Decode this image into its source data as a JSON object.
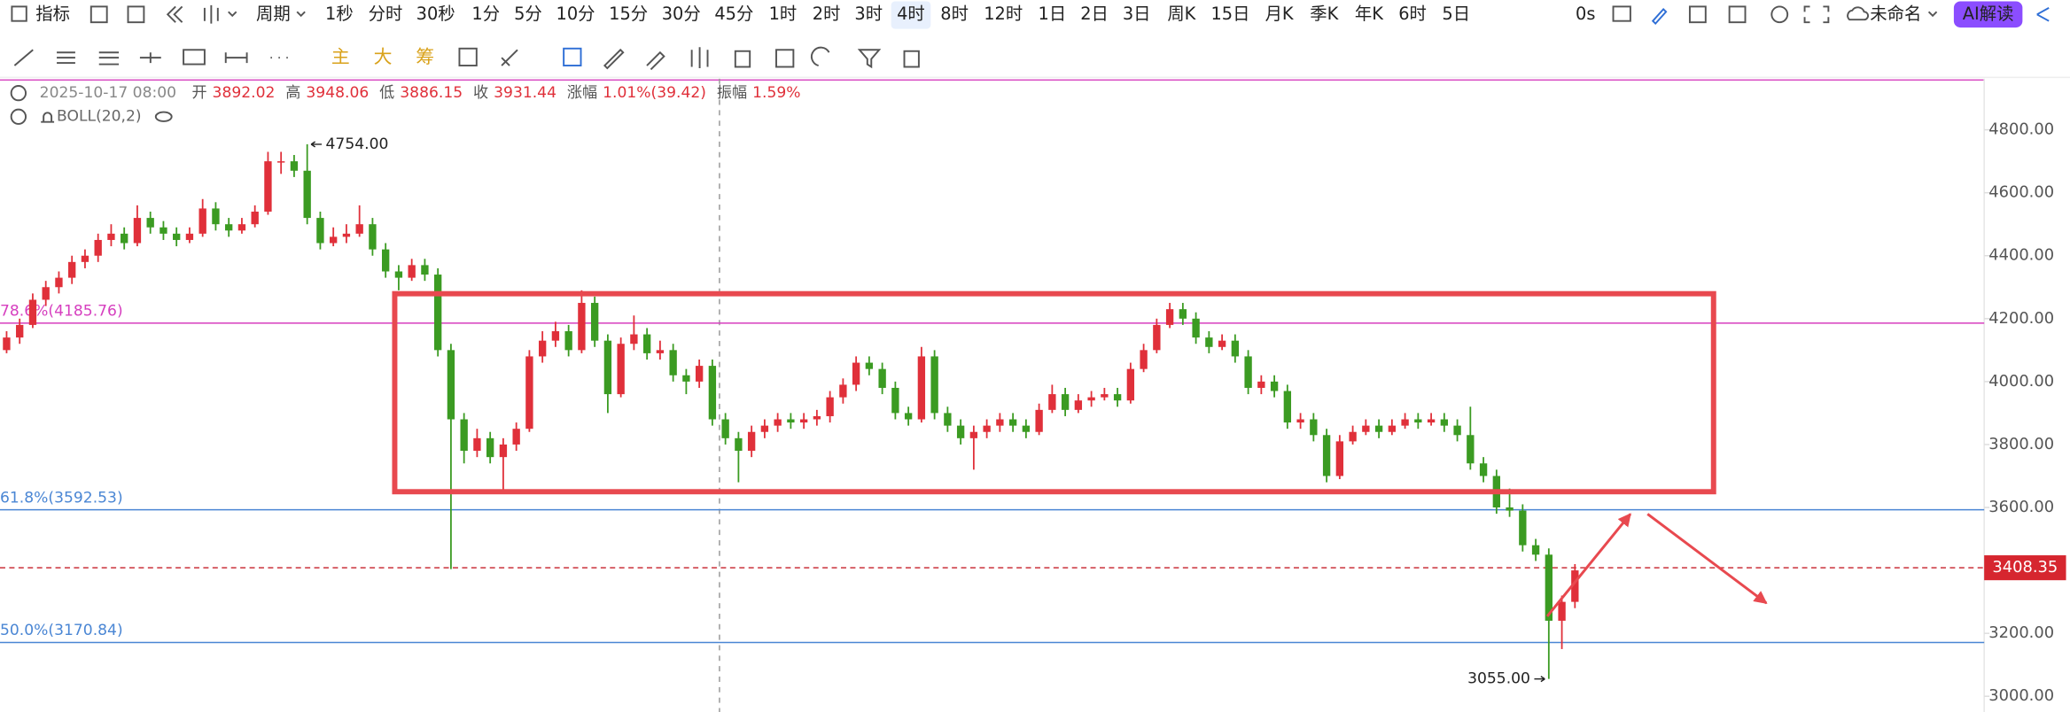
{
  "toolbar": {
    "indicator": "指标",
    "period": "周期",
    "intervals": [
      "1秒",
      "分时",
      "30秒",
      "1分",
      "5分",
      "10分",
      "15分",
      "30分",
      "45分",
      "1时",
      "2时",
      "3时",
      "4时",
      "8时",
      "12时",
      "1日",
      "2日",
      "3日",
      "周K",
      "15日",
      "月K",
      "季K",
      "年K",
      "6时",
      "5日"
    ],
    "selected_interval": "4时",
    "timer": "0s",
    "file_name": "未命名",
    "ai_button": "AI解读"
  },
  "drawing_tools": {
    "main": "主",
    "big": "大",
    "chips": "筹"
  },
  "info_bar": {
    "datetime": "2025-10-17 08:00",
    "fields": [
      {
        "label": "开",
        "value": "3892.02"
      },
      {
        "label": "高",
        "value": "3948.06"
      },
      {
        "label": "低",
        "value": "3886.15"
      },
      {
        "label": "收",
        "value": "3931.44"
      },
      {
        "label": "涨幅",
        "value": "1.01%(39.42)"
      },
      {
        "label": "振幅",
        "value": "1.59%"
      }
    ],
    "indicator": "BOLL(20,2)"
  },
  "chart_data": {
    "type": "candlestick",
    "up_color": "#e0303a",
    "down_color": "#3b9b22",
    "ylim": [
      2950,
      4962.5
    ],
    "yticks": [
      {
        "value": 4800,
        "label": "4800.00"
      },
      {
        "value": 4600,
        "label": "4600.00"
      },
      {
        "value": 4400,
        "label": "4400.00"
      },
      {
        "value": 4200,
        "label": "4200.00"
      },
      {
        "value": 4000,
        "label": "4000.00"
      },
      {
        "value": 3800,
        "label": "3800.00"
      },
      {
        "value": 3600,
        "label": "3600.00"
      },
      {
        "value": 3400,
        "label": "3400.00"
      },
      {
        "value": 3200,
        "label": "3200.00"
      },
      {
        "value": 3000,
        "label": "3000.00"
      }
    ],
    "grid": false,
    "high_label": "4754.00",
    "low_label": "3055.00",
    "current_price": 3408.35,
    "levels": [
      {
        "label": "78.6%(4185.76)",
        "value": 4185.76,
        "color": "#d63fbf"
      },
      {
        "label": "61.8%(3592.53)",
        "value": 3592.53,
        "color": "#4a86d4"
      },
      {
        "label": "50.0%(3170.84)",
        "value": 3170.84,
        "color": "#4a86d4"
      }
    ],
    "candles": [
      [
        4100,
        4160,
        4090,
        4140
      ],
      [
        4140,
        4200,
        4120,
        4180
      ],
      [
        4180,
        4280,
        4170,
        4260
      ],
      [
        4260,
        4320,
        4240,
        4300
      ],
      [
        4300,
        4350,
        4280,
        4330
      ],
      [
        4330,
        4400,
        4310,
        4380
      ],
      [
        4380,
        4420,
        4360,
        4400
      ],
      [
        4400,
        4470,
        4380,
        4450
      ],
      [
        4450,
        4500,
        4430,
        4470
      ],
      [
        4470,
        4490,
        4420,
        4440
      ],
      [
        4440,
        4560,
        4430,
        4520
      ],
      [
        4520,
        4540,
        4470,
        4490
      ],
      [
        4490,
        4510,
        4450,
        4470
      ],
      [
        4470,
        4490,
        4430,
        4450
      ],
      [
        4450,
        4490,
        4440,
        4470
      ],
      [
        4470,
        4580,
        4460,
        4550
      ],
      [
        4550,
        4570,
        4480,
        4500
      ],
      [
        4500,
        4520,
        4460,
        4480
      ],
      [
        4480,
        4520,
        4470,
        4500
      ],
      [
        4500,
        4560,
        4490,
        4540
      ],
      [
        4540,
        4730,
        4530,
        4700
      ],
      [
        4700,
        4730,
        4660,
        4700
      ],
      [
        4700,
        4720,
        4650,
        4670
      ],
      [
        4670,
        4754,
        4500,
        4520
      ],
      [
        4520,
        4540,
        4420,
        4440
      ],
      [
        4440,
        4490,
        4430,
        4460
      ],
      [
        4460,
        4500,
        4440,
        4470
      ],
      [
        4470,
        4560,
        4460,
        4500
      ],
      [
        4500,
        4520,
        4400,
        4420
      ],
      [
        4420,
        4440,
        4330,
        4350
      ],
      [
        4350,
        4370,
        4290,
        4330
      ],
      [
        4330,
        4390,
        4320,
        4370
      ],
      [
        4370,
        4390,
        4320,
        4340
      ],
      [
        4340,
        4360,
        4080,
        4100
      ],
      [
        4100,
        4120,
        3404,
        3880
      ],
      [
        3880,
        3900,
        3740,
        3780
      ],
      [
        3780,
        3850,
        3760,
        3820
      ],
      [
        3820,
        3840,
        3740,
        3760
      ],
      [
        3760,
        3820,
        3650,
        3800
      ],
      [
        3800,
        3870,
        3780,
        3850
      ],
      [
        3850,
        4100,
        3840,
        4080
      ],
      [
        4080,
        4160,
        4060,
        4130
      ],
      [
        4130,
        4190,
        4110,
        4160
      ],
      [
        4160,
        4180,
        4080,
        4100
      ],
      [
        4100,
        4290,
        4090,
        4250
      ],
      [
        4250,
        4270,
        4110,
        4130
      ],
      [
        4130,
        4150,
        3900,
        3960
      ],
      [
        3960,
        4140,
        3950,
        4120
      ],
      [
        4120,
        4210,
        4100,
        4150
      ],
      [
        4150,
        4170,
        4070,
        4090
      ],
      [
        4090,
        4130,
        4070,
        4100
      ],
      [
        4100,
        4120,
        4000,
        4020
      ],
      [
        4020,
        4040,
        3960,
        4000
      ],
      [
        4000,
        4070,
        3980,
        4050
      ],
      [
        4050,
        4070,
        3860,
        3880
      ],
      [
        3880,
        3900,
        3800,
        3820
      ],
      [
        3820,
        3840,
        3680,
        3780
      ],
      [
        3780,
        3860,
        3760,
        3840
      ],
      [
        3840,
        3880,
        3820,
        3860
      ],
      [
        3860,
        3900,
        3840,
        3880
      ],
      [
        3880,
        3900,
        3850,
        3870
      ],
      [
        3870,
        3900,
        3850,
        3880
      ],
      [
        3880,
        3910,
        3860,
        3890
      ],
      [
        3890,
        3970,
        3870,
        3950
      ],
      [
        3950,
        4010,
        3930,
        3990
      ],
      [
        3990,
        4080,
        3970,
        4060
      ],
      [
        4060,
        4080,
        4020,
        4040
      ],
      [
        4040,
        4060,
        3960,
        3980
      ],
      [
        3980,
        4000,
        3880,
        3900
      ],
      [
        3900,
        3920,
        3860,
        3880
      ],
      [
        3880,
        4110,
        3870,
        4080
      ],
      [
        4080,
        4100,
        3880,
        3900
      ],
      [
        3900,
        3920,
        3840,
        3860
      ],
      [
        3860,
        3880,
        3800,
        3820
      ],
      [
        3820,
        3860,
        3720,
        3840
      ],
      [
        3840,
        3880,
        3820,
        3860
      ],
      [
        3860,
        3900,
        3840,
        3880
      ],
      [
        3880,
        3900,
        3840,
        3860
      ],
      [
        3860,
        3880,
        3820,
        3840
      ],
      [
        3840,
        3930,
        3830,
        3910
      ],
      [
        3910,
        3990,
        3900,
        3960
      ],
      [
        3960,
        3980,
        3890,
        3910
      ],
      [
        3910,
        3960,
        3900,
        3940
      ],
      [
        3940,
        3970,
        3920,
        3950
      ],
      [
        3950,
        3980,
        3940,
        3960
      ],
      [
        3960,
        3980,
        3920,
        3940
      ],
      [
        3940,
        4060,
        3930,
        4040
      ],
      [
        4040,
        4120,
        4030,
        4100
      ],
      [
        4100,
        4200,
        4090,
        4180
      ],
      [
        4180,
        4250,
        4170,
        4230
      ],
      [
        4230,
        4250,
        4180,
        4200
      ],
      [
        4200,
        4220,
        4120,
        4140
      ],
      [
        4140,
        4160,
        4090,
        4110
      ],
      [
        4110,
        4150,
        4100,
        4130
      ],
      [
        4130,
        4150,
        4060,
        4080
      ],
      [
        4080,
        4100,
        3960,
        3980
      ],
      [
        3980,
        4020,
        3960,
        4000
      ],
      [
        4000,
        4020,
        3950,
        3970
      ],
      [
        3970,
        3990,
        3850,
        3870
      ],
      [
        3870,
        3900,
        3850,
        3880
      ],
      [
        3880,
        3900,
        3810,
        3830
      ],
      [
        3830,
        3850,
        3680,
        3700
      ],
      [
        3700,
        3830,
        3690,
        3810
      ],
      [
        3810,
        3860,
        3800,
        3840
      ],
      [
        3840,
        3880,
        3830,
        3860
      ],
      [
        3860,
        3880,
        3820,
        3840
      ],
      [
        3840,
        3880,
        3830,
        3860
      ],
      [
        3860,
        3900,
        3850,
        3880
      ],
      [
        3880,
        3900,
        3850,
        3870
      ],
      [
        3870,
        3900,
        3860,
        3880
      ],
      [
        3880,
        3900,
        3840,
        3860
      ],
      [
        3860,
        3880,
        3810,
        3830
      ],
      [
        3830,
        3920,
        3720,
        3740
      ],
      [
        3740,
        3760,
        3680,
        3700
      ],
      [
        3700,
        3720,
        3580,
        3600
      ],
      [
        3600,
        3660,
        3570,
        3590
      ],
      [
        3590,
        3610,
        3460,
        3480
      ],
      [
        3480,
        3500,
        3430,
        3450
      ],
      [
        3450,
        3470,
        3055,
        3240
      ],
      [
        3240,
        3320,
        3150,
        3300
      ],
      [
        3300,
        3420,
        3280,
        3400
      ]
    ]
  }
}
